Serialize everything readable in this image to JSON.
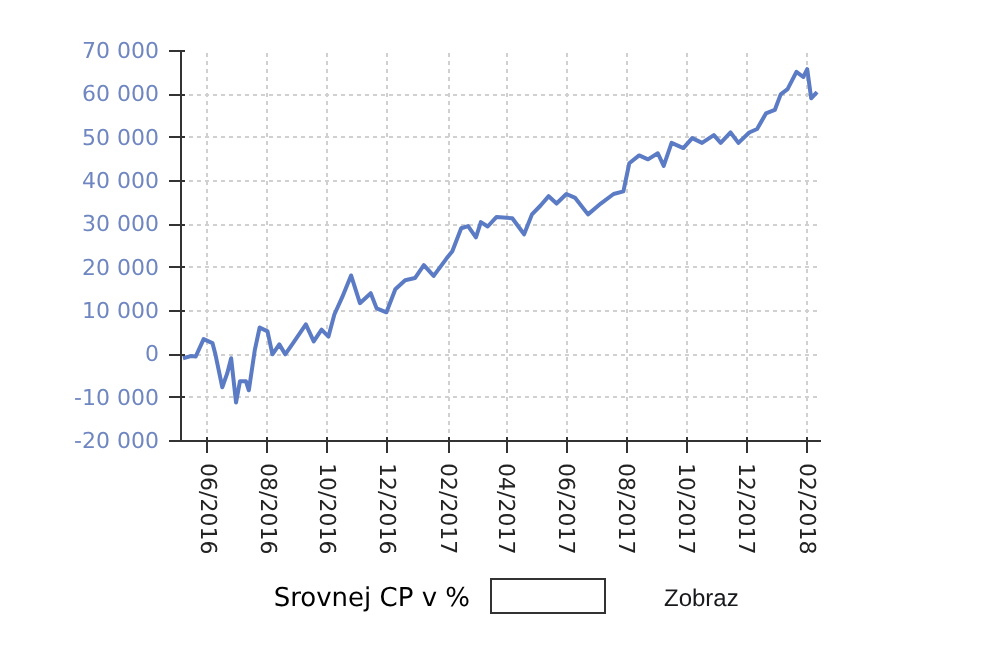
{
  "chart_data": {
    "type": "line",
    "x": [
      "2016-05-07",
      "2016-05-15",
      "2016-05-20",
      "2016-05-28",
      "2016-06-06",
      "2016-06-09",
      "2016-06-16",
      "2016-06-21",
      "2016-06-25",
      "2016-06-30",
      "2016-07-04",
      "2016-07-10",
      "2016-07-13",
      "2016-07-19",
      "2016-07-24",
      "2016-08-01",
      "2016-08-06",
      "2016-08-13",
      "2016-08-19",
      "2016-08-27",
      "2016-09-09",
      "2016-09-17",
      "2016-09-25",
      "2016-10-02",
      "2016-10-08",
      "2016-10-16",
      "2016-10-25",
      "2016-11-03",
      "2016-11-14",
      "2016-11-20",
      "2016-11-30",
      "2016-12-09",
      "2016-12-19",
      "2016-12-29",
      "2017-01-07",
      "2017-01-17",
      "2017-01-30",
      "2017-02-05",
      "2017-02-14",
      "2017-02-21",
      "2017-03-01",
      "2017-03-06",
      "2017-03-13",
      "2017-03-22",
      "2017-04-07",
      "2017-04-19",
      "2017-04-27",
      "2017-05-06",
      "2017-05-14",
      "2017-05-22",
      "2017-06-01",
      "2017-06-10",
      "2017-06-23",
      "2017-07-06",
      "2017-07-19",
      "2017-07-29",
      "2017-08-04",
      "2017-08-14",
      "2017-08-23",
      "2017-09-02",
      "2017-09-08",
      "2017-09-16",
      "2017-09-28",
      "2017-10-07",
      "2017-10-17",
      "2017-10-29",
      "2017-11-05",
      "2017-11-15",
      "2017-11-23",
      "2017-12-04",
      "2017-12-12",
      "2017-12-21",
      "2017-12-30",
      "2018-01-05",
      "2018-01-12",
      "2018-01-21",
      "2018-01-28",
      "2018-02-01",
      "2018-02-05",
      "2018-02-11"
    ],
    "series": [
      {
        "color": "#5b7bc4",
        "values": [
          -900,
          -400,
          -500,
          3500,
          2600,
          0,
          -7600,
          -4400,
          -900,
          -11100,
          -6200,
          -6200,
          -8300,
          900,
          6200,
          5300,
          0,
          2300,
          0,
          2600,
          6900,
          3000,
          5700,
          4100,
          9200,
          13200,
          18200,
          11800,
          14100,
          10600,
          9700,
          15000,
          17100,
          17600,
          20600,
          18100,
          22100,
          23800,
          29100,
          29600,
          27000,
          30500,
          29500,
          31700,
          31400,
          27700,
          32300,
          34400,
          36500,
          34800,
          37000,
          36100,
          32300,
          34800,
          37000,
          37600,
          44100,
          45900,
          45000,
          46400,
          43500,
          48800,
          47600,
          49900,
          48800,
          50600,
          48800,
          51200,
          48800,
          51200,
          52000,
          55600,
          56400,
          60000,
          61200,
          65200,
          64000,
          65800,
          59100,
          60500
        ]
      }
    ],
    "xlim": [
      "2016-05-05",
      "2018-02-15"
    ],
    "xticks": [
      {
        "value": "2016-06-01",
        "label": "06/2016"
      },
      {
        "value": "2016-08-01",
        "label": "08/2016"
      },
      {
        "value": "2016-10-01",
        "label": "10/2016"
      },
      {
        "value": "2016-12-01",
        "label": "12/2016"
      },
      {
        "value": "2017-02-01",
        "label": "02/2017"
      },
      {
        "value": "2017-04-01",
        "label": "04/2017"
      },
      {
        "value": "2017-06-01",
        "label": "06/2017"
      },
      {
        "value": "2017-08-01",
        "label": "08/2017"
      },
      {
        "value": "2017-10-01",
        "label": "10/2017"
      },
      {
        "value": "2017-12-01",
        "label": "12/2017"
      },
      {
        "value": "2018-02-01",
        "label": "02/2018"
      }
    ],
    "ylim": [
      -20000,
      70000
    ],
    "yticks": [
      {
        "value": -20000,
        "label": "-20 000"
      },
      {
        "value": -10000,
        "label": "-10 000"
      },
      0,
      {
        "value": 10000,
        "label": "10 000"
      },
      {
        "value": 20000,
        "label": "20 000"
      },
      {
        "value": 30000,
        "label": "30 000"
      },
      {
        "value": 40000,
        "label": "40 000"
      },
      {
        "value": 50000,
        "label": "50 000"
      },
      {
        "value": 60000,
        "label": "60 000"
      },
      {
        "value": 70000,
        "label": "70 000"
      }
    ],
    "grid": true,
    "line_style": "solid",
    "annotations": [
      "Srovnej CP v %",
      "Zobraz"
    ]
  }
}
